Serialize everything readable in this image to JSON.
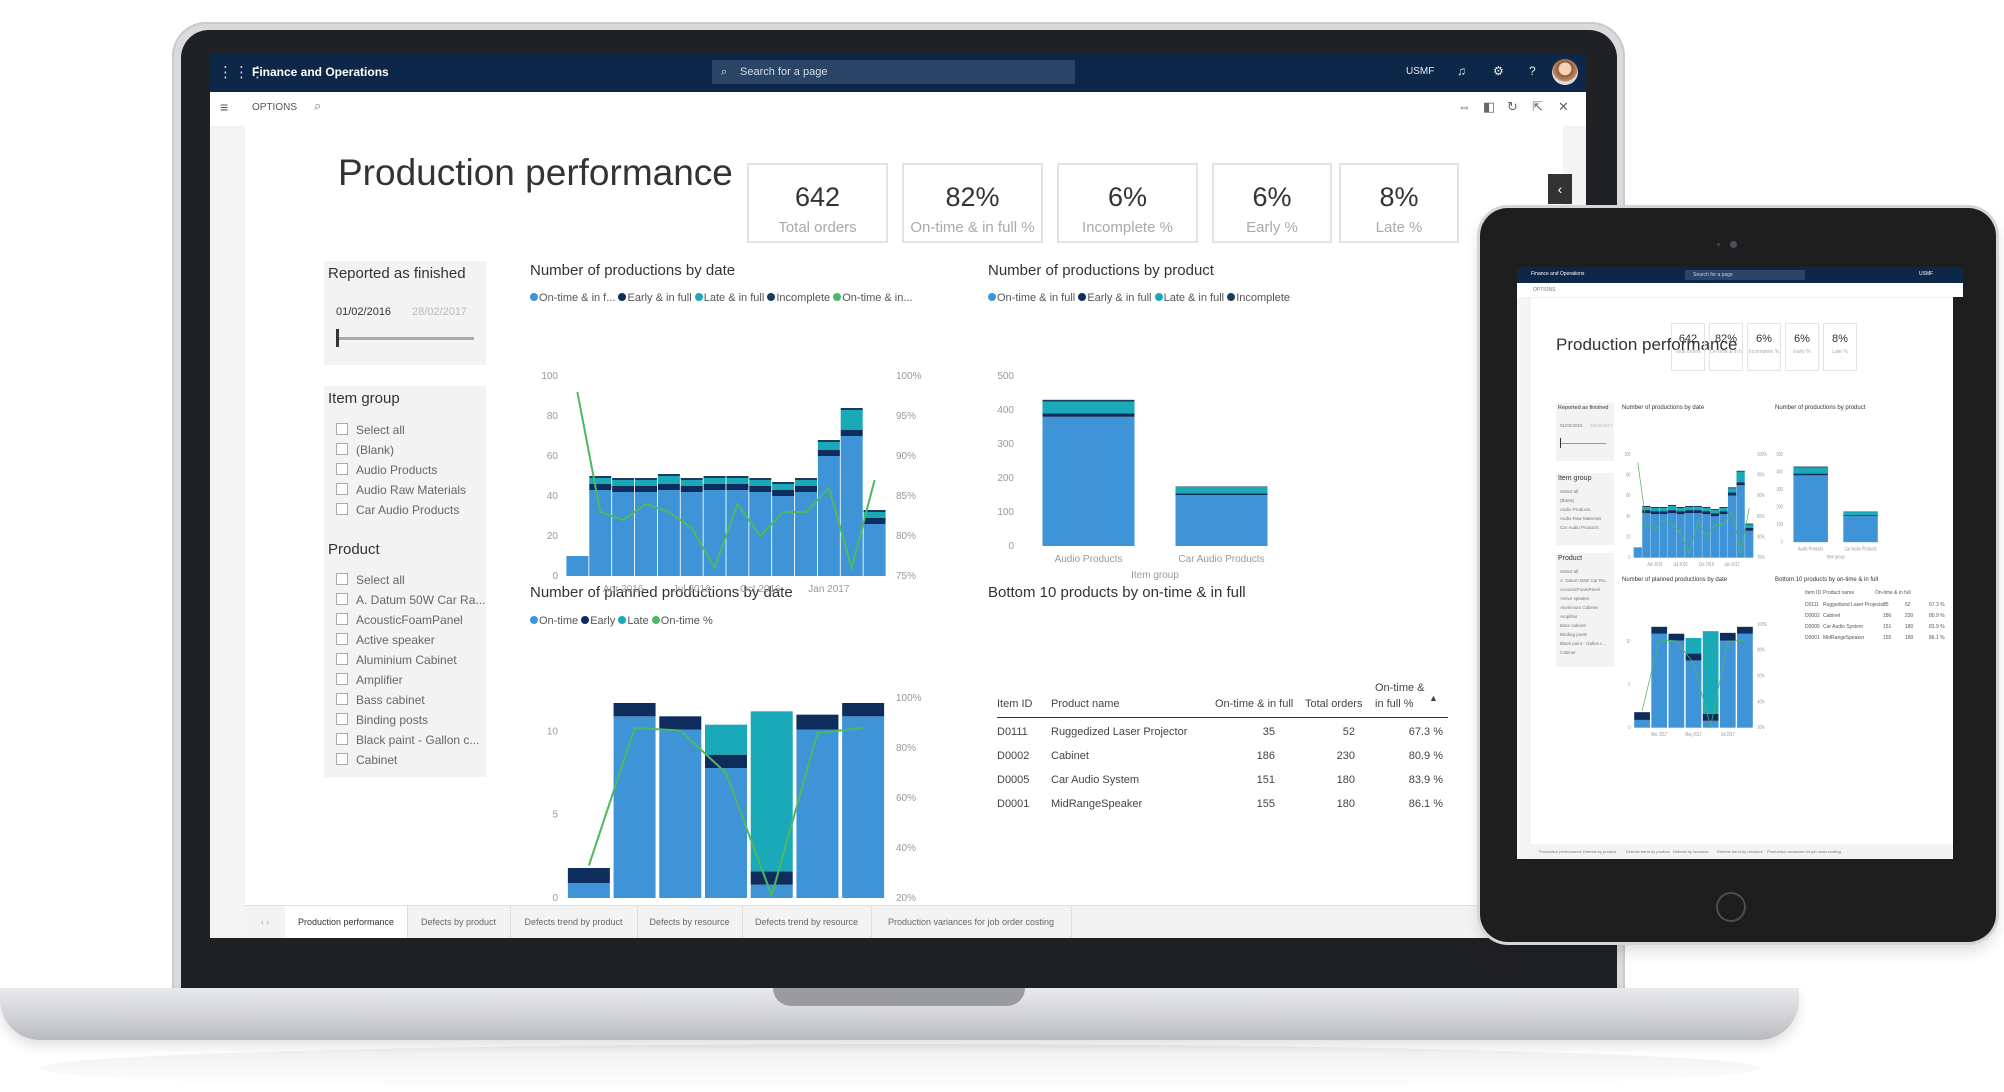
{
  "app": {
    "name": "Finance and Operations",
    "search_placeholder": "Search for a page",
    "company": "USMF",
    "options_label": "OPTIONS",
    "help_label": "?"
  },
  "report": {
    "title": "Production performance",
    "kpis": [
      {
        "value": "642",
        "label": "Total orders"
      },
      {
        "value": "82%",
        "label": "On-time & in full %"
      },
      {
        "value": "6%",
        "label": "Incomplete %"
      },
      {
        "value": "6%",
        "label": "Early %"
      },
      {
        "value": "8%",
        "label": "Late %"
      }
    ],
    "slicers": {
      "reported": {
        "title": "Reported as finished",
        "start": "01/02/2016",
        "end": "28/02/2017"
      },
      "item_group": {
        "title": "Item group",
        "items": [
          "Select all",
          "(Blank)",
          "Audio Products",
          "Audio Raw Materials",
          "Car Audio Products"
        ]
      },
      "product": {
        "title": "Product",
        "items": [
          "Select all",
          "A. Datum 50W Car Ra...",
          "AcousticFoamPanel",
          "Active speaker",
          "Aluminium Cabinet",
          "Amplifier",
          "Bass cabinet",
          "Binding posts",
          "Black paint - Gallon c...",
          "Cabinet"
        ]
      }
    },
    "visual_titles": {
      "by_date": "Number of productions by date",
      "by_product": "Number of productions by product",
      "planned": "Number of planned productions by date",
      "bottom10": "Bottom 10 products by on-time & in full"
    },
    "legend_by_date": [
      "On-time & in f...",
      "Early & in full",
      "Late & in full",
      "Incomplete",
      "On-time & in..."
    ],
    "legend_by_product": [
      "On-time & in full",
      "Early & in full",
      "Late & in full",
      "Incomplete"
    ],
    "legend_planned": [
      "On-time",
      "Early",
      "Late",
      "On-time %"
    ],
    "table": {
      "headers": {
        "id": "Item ID",
        "name": "Product name",
        "otif": "On-time & in full",
        "total": "Total orders",
        "pct1": "On-time &",
        "pct2": "in full %"
      },
      "rows": [
        {
          "id": "D0111",
          "name": "Ruggedized Laser Projector",
          "otif": "35",
          "total": "52",
          "pct": "67.3 %"
        },
        {
          "id": "D0002",
          "name": "Cabinet",
          "otif": "186",
          "total": "230",
          "pct": "80.9 %"
        },
        {
          "id": "D0005",
          "name": "Car Audio System",
          "otif": "151",
          "total": "180",
          "pct": "83.9 %"
        },
        {
          "id": "D0001",
          "name": "MidRangeSpeaker",
          "otif": "155",
          "total": "180",
          "pct": "86.1 %"
        }
      ]
    },
    "tabs": [
      "Production performance",
      "Defects by product",
      "Defects trend by product",
      "Defects by resource",
      "Defects trend by resource",
      "Production variances for job order costing"
    ]
  },
  "colors": {
    "ontime": "#3f94d8",
    "early": "#0f2d5c",
    "late": "#1aa9b8",
    "incomplete": "#1d3b5a",
    "pct_line": "#4cb863",
    "topbar": "#0d2748"
  },
  "chart_data": [
    {
      "type": "bar",
      "title": "Number of productions by date",
      "stacked": true,
      "x_ticks": [
        "Apr 2016",
        "Jul 2016",
        "Oct 2016",
        "Jan 2017"
      ],
      "ylim": [
        0,
        100
      ],
      "y_ticks": [
        "0",
        "20",
        "40",
        "60",
        "80",
        "100"
      ],
      "y2_ticks": [
        "75%",
        "80%",
        "85%",
        "90%",
        "95%",
        "100%"
      ],
      "series": [
        {
          "name": "On-time & in f...",
          "values": [
            10,
            43,
            42,
            42,
            43,
            42,
            43,
            43,
            42,
            40,
            42,
            60,
            70,
            26
          ]
        },
        {
          "name": "Early & in full",
          "values": [
            0,
            3,
            3,
            3,
            3,
            3,
            3,
            3,
            3,
            3,
            3,
            3,
            3,
            3
          ]
        },
        {
          "name": "Late & in full",
          "values": [
            0,
            3,
            3,
            3,
            4,
            3,
            3,
            3,
            3,
            3,
            3,
            4,
            10,
            3
          ]
        },
        {
          "name": "Incomplete",
          "values": [
            0,
            1,
            1,
            1,
            1,
            1,
            1,
            1,
            1,
            1,
            1,
            1,
            1,
            1
          ]
        }
      ],
      "line": {
        "name": "On-time & in...",
        "values": [
          98,
          83,
          82,
          84,
          83,
          81,
          76,
          84,
          80,
          83,
          83,
          86,
          76,
          87
        ]
      }
    },
    {
      "type": "bar",
      "title": "Number of productions by product",
      "stacked": true,
      "categories": [
        "Audio Products",
        "Car Audio Products"
      ],
      "xlabel": "Item group",
      "ylim": [
        0,
        500
      ],
      "y_ticks": [
        "0",
        "100",
        "200",
        "300",
        "400",
        "500"
      ],
      "series": [
        {
          "name": "On-time & in full",
          "values": [
            380,
            150
          ]
        },
        {
          "name": "Early & in full",
          "values": [
            10,
            5
          ]
        },
        {
          "name": "Late & in full",
          "values": [
            35,
            18
          ]
        },
        {
          "name": "Incomplete",
          "values": [
            5,
            2
          ]
        }
      ]
    },
    {
      "type": "bar",
      "title": "Number of planned productions by date",
      "stacked": true,
      "x_ticks": [
        "Mar 2017",
        "May 2017",
        "Jul 2017"
      ],
      "ylim": [
        0,
        12
      ],
      "y_ticks": [
        "0",
        "5",
        "10"
      ],
      "y2_ticks": [
        "20%",
        "40%",
        "60%",
        "80%",
        "100%"
      ],
      "series": [
        {
          "name": "On-time",
          "values": [
            0.9,
            10.9,
            10.1,
            7.8,
            0.8,
            10.1,
            10.9
          ]
        },
        {
          "name": "Early",
          "values": [
            0.9,
            0.8,
            0.8,
            0.8,
            0.8,
            0.9,
            0.8
          ]
        },
        {
          "name": "Late",
          "values": [
            0,
            0,
            0,
            1.8,
            9.6,
            0,
            0
          ]
        }
      ],
      "line": {
        "name": "On-time %",
        "values": [
          33,
          88,
          87,
          70,
          21,
          86,
          88
        ]
      }
    }
  ]
}
